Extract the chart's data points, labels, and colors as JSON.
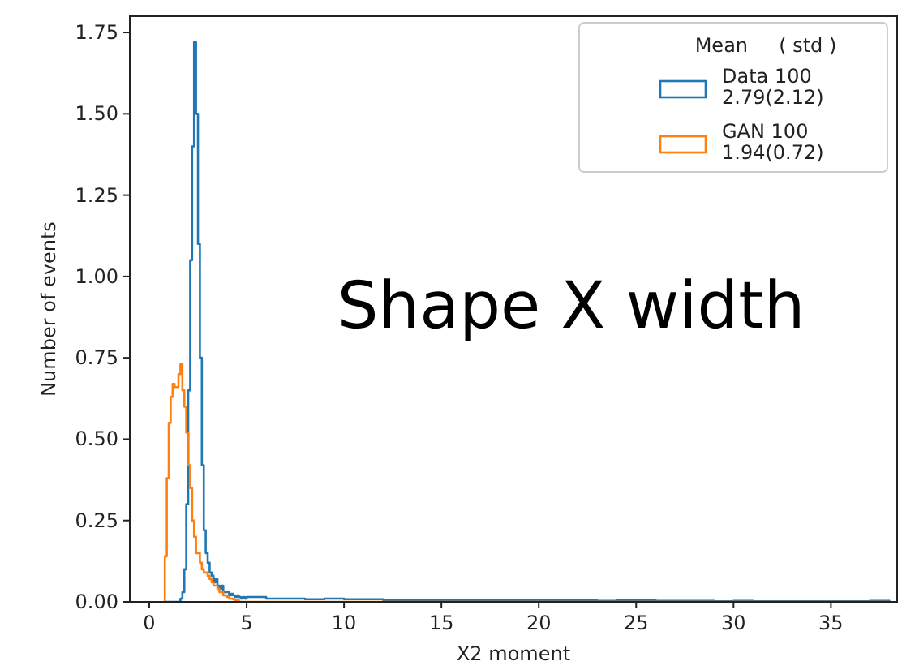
{
  "chart_data": {
    "type": "histogram",
    "xlabel": "X2 moment",
    "ylabel": "Number of events",
    "xlim": [
      -1,
      38.4
    ],
    "ylim": [
      0,
      1.8
    ],
    "xticks": [
      0,
      5,
      10,
      15,
      20,
      25,
      30,
      35
    ],
    "yticks": [
      {
        "value": 0,
        "label": "0.00"
      },
      {
        "value": 0.25,
        "label": "0.25"
      },
      {
        "value": 0.5,
        "label": "0.50"
      },
      {
        "value": 0.75,
        "label": "0.75"
      },
      {
        "value": 1,
        "label": "1.00"
      },
      {
        "value": 1.25,
        "label": "1.25"
      },
      {
        "value": 1.5,
        "label": "1.50"
      },
      {
        "value": 1.75,
        "label": "1.75"
      }
    ],
    "legend": "top right",
    "legend_title": "Mean     ( std )",
    "annotations": [
      "Shape X width"
    ],
    "bins": [
      0.8,
      0.9,
      1.0,
      1.1,
      1.2,
      1.3,
      1.4,
      1.5,
      1.6,
      1.7,
      1.8,
      1.9,
      2.0,
      2.1,
      2.2,
      2.3,
      2.4,
      2.5,
      2.6,
      2.7,
      2.8,
      2.9,
      3.0,
      3.1,
      3.2,
      3.3,
      3.4,
      3.5,
      3.6,
      3.7,
      3.8,
      3.9,
      4.0,
      4.1,
      4.2,
      4.3,
      4.4,
      4.5,
      4.6,
      4.7,
      4.8,
      4.9,
      5,
      6,
      7,
      8,
      9,
      10,
      11,
      12,
      13,
      14,
      15,
      16,
      17,
      18,
      19,
      20,
      21,
      22,
      23,
      24,
      25,
      26,
      27,
      28,
      29,
      30,
      31,
      32,
      33,
      34,
      35,
      36,
      37,
      38
    ],
    "series": [
      {
        "name": "Data 100\n2.79(2.12)",
        "color": "#1f77b4",
        "values": [
          0,
          0,
          0,
          0,
          0,
          0,
          0,
          0,
          0.01,
          0.03,
          0.1,
          0.3,
          0.65,
          1.05,
          1.4,
          1.72,
          1.5,
          1.1,
          0.75,
          0.42,
          0.22,
          0.15,
          0.12,
          0.09,
          0.08,
          0.06,
          0.07,
          0.05,
          0.04,
          0.05,
          0.03,
          0.03,
          0.03,
          0.02,
          0.025,
          0.02,
          0.015,
          0.02,
          0.015,
          0.01,
          0.015,
          0.01,
          0.015,
          0.01,
          0.01,
          0.008,
          0.01,
          0.008,
          0.008,
          0.006,
          0.006,
          0.005,
          0.006,
          0.005,
          0.004,
          0.006,
          0.004,
          0.005,
          0.004,
          0.004,
          0.003,
          0.004,
          0.005,
          0.003,
          0.003,
          0.003,
          0.002,
          0.003,
          0.002,
          0.002,
          0.002,
          0.002,
          0.002,
          0.002,
          0.003
        ]
      },
      {
        "name": "GAN 100\n1.94(0.72)",
        "color": "#ff7f0e",
        "values": [
          0.14,
          0.38,
          0.55,
          0.63,
          0.67,
          0.66,
          0.66,
          0.7,
          0.73,
          0.65,
          0.6,
          0.52,
          0.42,
          0.35,
          0.25,
          0.2,
          0.15,
          0.15,
          0.12,
          0.1,
          0.09,
          0.09,
          0.08,
          0.07,
          0.06,
          0.05,
          0.05,
          0.04,
          0.03,
          0.03,
          0.02,
          0.02,
          0.015,
          0.01,
          0.01,
          0.008,
          0.005,
          0.005,
          0,
          0,
          0,
          0,
          0,
          0,
          0,
          0,
          0,
          0,
          0,
          0,
          0,
          0,
          0,
          0,
          0,
          0,
          0,
          0,
          0,
          0,
          0,
          0,
          0,
          0,
          0,
          0,
          0,
          0,
          0,
          0,
          0,
          0,
          0,
          0,
          0
        ]
      }
    ]
  }
}
